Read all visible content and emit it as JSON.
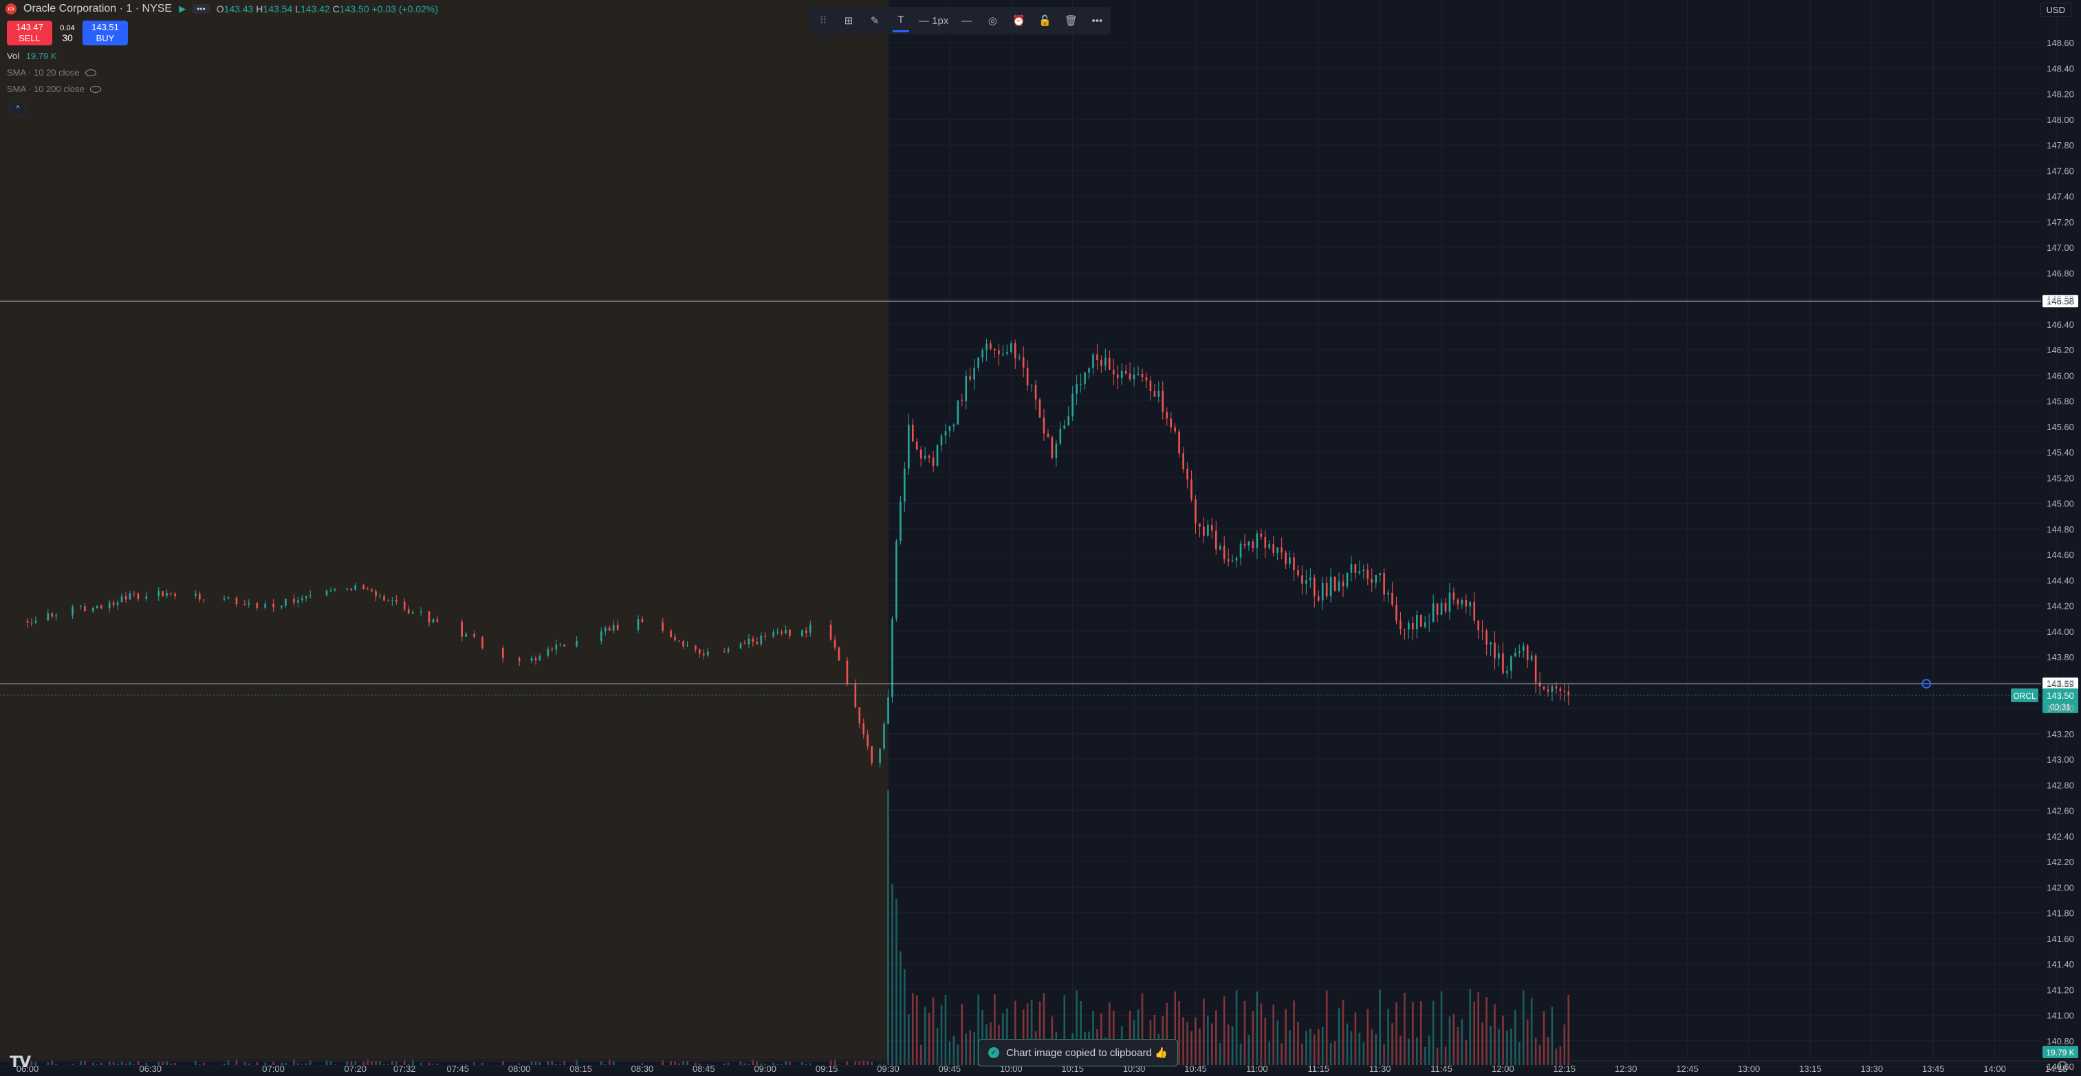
{
  "symbol": {
    "name": "Oracle Corporation",
    "interval": "1",
    "exchange": "NYSE",
    "title": "Oracle Corporation · 1 · NYSE",
    "more": "•••",
    "open_label": "O",
    "open": "143.43",
    "high_label": "H",
    "high": "143.54",
    "low_label": "L",
    "low": "143.42",
    "close_label": "C",
    "close": "143.50",
    "change": "+0.03 (+0.02%)"
  },
  "trade": {
    "sell_price": "143.47",
    "sell_label": "SELL",
    "spread_top": "0.04",
    "spread_value": "30",
    "buy_price": "143.51",
    "buy_label": "BUY"
  },
  "indicators": {
    "vol_label": "Vol",
    "vol_value": "19.79 K",
    "sma1": "SMA · 10 20 close",
    "sma2": "SMA · 10 200 close",
    "collapse": "^"
  },
  "toolbar": {
    "drag": "⠿",
    "template": "⊞",
    "pencil": "✎",
    "text": "T",
    "line_width": "— 1px",
    "line_style": "—",
    "visibility": "◎",
    "alert": "⏰",
    "lock": "🔓",
    "delete": "🗑",
    "more": "•••"
  },
  "currency": "USD",
  "toast": {
    "check": "✓",
    "text": "Chart image copied to clipboard 👍"
  },
  "logo": "TV",
  "colors": {
    "up": "#26a69a",
    "down": "#ef5350",
    "premarket_bg": "#26231f",
    "background": "#131722",
    "grid": "#1e222d",
    "price_line": "#26a69a"
  },
  "chart_data": {
    "type": "candlestick",
    "symbol": "ORCL",
    "y_axis": {
      "min": 140.6,
      "max": 148.6,
      "ticks": [
        148.6,
        148.4,
        148.2,
        148.0,
        147.8,
        147.6,
        147.4,
        147.2,
        147.0,
        146.8,
        146.6,
        146.4,
        146.2,
        146.0,
        145.8,
        145.6,
        145.4,
        145.2,
        145.0,
        144.8,
        144.6,
        144.4,
        144.2,
        144.0,
        143.8,
        143.6,
        143.4,
        143.2,
        143.0,
        142.8,
        142.6,
        142.4,
        142.2,
        142.0,
        141.8,
        141.6,
        141.4,
        141.2,
        141.0,
        140.8,
        140.6
      ]
    },
    "x_axis": {
      "labels": [
        "06:00",
        "06:30",
        "07:00",
        "07:20",
        "07:32",
        "07:45",
        "08:00",
        "08:15",
        "08:30",
        "08:45",
        "09:00",
        "09:15",
        "09:30",
        "09:45",
        "10:00",
        "10:15",
        "10:30",
        "10:45",
        "11:00",
        "11:15",
        "11:30",
        "11:45",
        "12:00",
        "12:15",
        "12:30",
        "12:45",
        "13:00",
        "13:15",
        "13:30",
        "13:45",
        "14:00",
        "14:15"
      ]
    },
    "premarket_end": "09:30",
    "horizontal_lines": [
      146.58,
      143.59
    ],
    "current_price": 143.5,
    "current_label": "ORCL",
    "countdown": "00:31",
    "volume_current": "19.79 K",
    "tick_format": "2dp",
    "price_path": [
      {
        "t": "06:00",
        "p": 144.08
      },
      {
        "t": "06:30",
        "p": 144.3
      },
      {
        "t": "07:00",
        "p": 144.2
      },
      {
        "t": "07:20",
        "p": 144.35
      },
      {
        "t": "07:45",
        "p": 144.0
      },
      {
        "t": "08:00",
        "p": 143.75
      },
      {
        "t": "08:15",
        "p": 143.95
      },
      {
        "t": "08:30",
        "p": 144.1
      },
      {
        "t": "08:45",
        "p": 143.8
      },
      {
        "t": "09:00",
        "p": 143.95
      },
      {
        "t": "09:15",
        "p": 144.05
      },
      {
        "t": "09:20",
        "p": 143.6
      },
      {
        "t": "09:27",
        "p": 142.9
      },
      {
        "t": "09:30",
        "p": 143.5
      },
      {
        "t": "09:32",
        "p": 144.7
      },
      {
        "t": "09:35",
        "p": 145.6
      },
      {
        "t": "09:40",
        "p": 145.3
      },
      {
        "t": "09:45",
        "p": 145.6
      },
      {
        "t": "09:52",
        "p": 146.2
      },
      {
        "t": "10:00",
        "p": 146.2
      },
      {
        "t": "10:05",
        "p": 145.9
      },
      {
        "t": "10:10",
        "p": 145.4
      },
      {
        "t": "10:15",
        "p": 145.8
      },
      {
        "t": "10:20",
        "p": 146.1
      },
      {
        "t": "10:30",
        "p": 146.0
      },
      {
        "t": "10:35",
        "p": 145.9
      },
      {
        "t": "10:40",
        "p": 145.5
      },
      {
        "t": "10:45",
        "p": 144.9
      },
      {
        "t": "10:52",
        "p": 144.6
      },
      {
        "t": "11:00",
        "p": 144.7
      },
      {
        "t": "11:05",
        "p": 144.6
      },
      {
        "t": "11:15",
        "p": 144.3
      },
      {
        "t": "11:25",
        "p": 144.5
      },
      {
        "t": "11:30",
        "p": 144.4
      },
      {
        "t": "11:35",
        "p": 144.0
      },
      {
        "t": "11:45",
        "p": 144.2
      },
      {
        "t": "11:50",
        "p": 144.3
      },
      {
        "t": "11:55",
        "p": 144.0
      },
      {
        "t": "12:00",
        "p": 143.7
      },
      {
        "t": "12:05",
        "p": 143.9
      },
      {
        "t": "12:10",
        "p": 143.5
      },
      {
        "t": "12:15",
        "p": 143.5
      }
    ],
    "end_time": "12:16"
  }
}
